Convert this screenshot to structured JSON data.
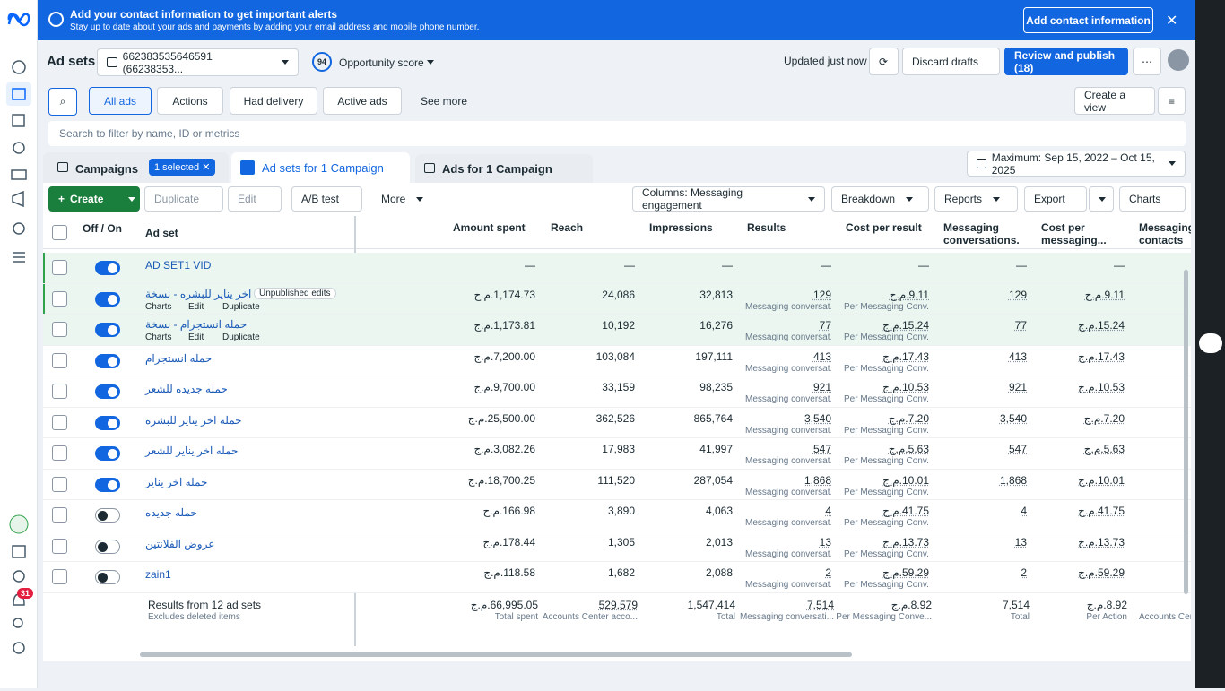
{
  "banner": {
    "title": "Add your contact information to get important alerts",
    "subtitle": "Stay up to date about your ads and payments by adding your email address and mobile phone number.",
    "button": "Add contact information"
  },
  "sidebar": {
    "badge": "31"
  },
  "header": {
    "title": "Ad sets",
    "account": "662383535646591 (66238353...",
    "score": "94",
    "score_label": "Opportunity score",
    "updated": "Updated just now",
    "discard": "Discard drafts",
    "publish": "Review and publish (18)"
  },
  "filters": {
    "items": [
      "All ads",
      "Actions",
      "Had delivery",
      "Active ads",
      "See more"
    ],
    "create_view": "Create a view",
    "search_placeholder": "Search to filter by name, ID or metrics"
  },
  "tabs": {
    "campaigns": "Campaigns",
    "selected": "1 selected",
    "adsets": "Ad sets for 1 Campaign",
    "ads": "Ads for 1 Campaign",
    "date": "Maximum: Sep 15, 2022 – Oct 15, 2025"
  },
  "toolbar": {
    "create": "Create",
    "duplicate": "Duplicate",
    "edit": "Edit",
    "ab": "A/B test",
    "more": "More",
    "columns": "Columns: Messaging engagement",
    "breakdown": "Breakdown",
    "reports": "Reports",
    "export": "Export",
    "charts": "Charts"
  },
  "table": {
    "columns": [
      "Off / On",
      "Ad set",
      "Amount spent",
      "Reach",
      "Impressions",
      "Results",
      "Cost per result",
      "Messaging conversations...",
      "Cost per messaging...",
      "Messaging contacts"
    ],
    "rows": [
      {
        "name": "AD SET1 VID",
        "on": true,
        "amount": "—",
        "reach": "—",
        "impressions": "—",
        "results": "—",
        "cost": "—",
        "conversations": "—",
        "cost_msg": "—"
      },
      {
        "name": "حمله اخر يناير للبشره - نسخة",
        "badge": "Unpublished edits",
        "actions": [
          "Charts",
          "Edit",
          "Duplicate"
        ],
        "on": true,
        "amount": "ج.م.1,174.73",
        "reach": "24,086",
        "impressions": "32,813",
        "results": "129",
        "results_sub": "Messaging conversat...",
        "cost": "ج.م.9.11",
        "cost_sub": "Per Messaging Conv...",
        "conversations": "129",
        "cost_msg": "ج.م.9.11"
      },
      {
        "name": "حمله انستجرام - نسخة",
        "actions": [
          "Charts",
          "Edit",
          "Duplicate"
        ],
        "on": true,
        "amount": "ج.م.1,173.81",
        "reach": "10,192",
        "impressions": "16,276",
        "results": "77",
        "results_sub": "Messaging conversat...",
        "cost": "ج.م.15.24",
        "cost_sub": "Per Messaging Conv...",
        "conversations": "77",
        "cost_msg": "ج.م.15.24"
      },
      {
        "name": "حمله انستجرام",
        "on": true,
        "amount": "ج.م.7,200.00",
        "reach": "103,084",
        "impressions": "197,111",
        "results": "413",
        "results_sub": "Messaging conversat...",
        "cost": "ج.م.17.43",
        "cost_sub": "Per Messaging Conv...",
        "conversations": "413",
        "cost_msg": "ج.م.17.43"
      },
      {
        "name": "حمله جديده للشعر",
        "on": true,
        "amount": "ج.م.9,700.00",
        "reach": "33,159",
        "impressions": "98,235",
        "results": "921",
        "results_sub": "Messaging conversat...",
        "cost": "ج.م.10.53",
        "cost_sub": "Per Messaging Conv...",
        "conversations": "921",
        "cost_msg": "ج.م.10.53"
      },
      {
        "name": "حمله اخر يناير للبشره",
        "on": true,
        "amount": "ج.م.25,500.00",
        "reach": "362,526",
        "impressions": "865,764",
        "results": "3,540",
        "results_sub": "Messaging conversat...",
        "cost": "ج.م.7.20",
        "cost_sub": "Per Messaging Conv...",
        "conversations": "3,540",
        "cost_msg": "ج.م.7.20"
      },
      {
        "name": "حمله اخر يناير للشعر",
        "on": true,
        "amount": "ج.م.3,082.26",
        "reach": "17,983",
        "impressions": "41,997",
        "results": "547",
        "results_sub": "Messaging conversat...",
        "cost": "ج.م.5.63",
        "cost_sub": "Per Messaging Conv...",
        "conversations": "547",
        "cost_msg": "ج.م.5.63"
      },
      {
        "name": "خمله اخر يناير",
        "on": true,
        "amount": "ج.م.18,700.25",
        "reach": "111,520",
        "impressions": "287,054",
        "results": "1,868",
        "results_sub": "Messaging conversat...",
        "cost": "ج.م.10.01",
        "cost_sub": "Per Messaging Conv...",
        "conversations": "1,868",
        "cost_msg": "ج.م.10.01"
      },
      {
        "name": "حمله جديده",
        "on": false,
        "amount": "ج.م.166.98",
        "reach": "3,890",
        "impressions": "4,063",
        "results": "4",
        "results_sub": "Messaging conversat...",
        "cost": "ج.م.41.75",
        "cost_sub": "Per Messaging Conv...",
        "conversations": "4",
        "cost_msg": "ج.م.41.75"
      },
      {
        "name": "عروض الفلانتين",
        "on": false,
        "amount": "ج.م.178.44",
        "reach": "1,305",
        "impressions": "2,013",
        "results": "13",
        "results_sub": "Messaging conversat...",
        "cost": "ج.م.13.73",
        "cost_sub": "Per Messaging Conv...",
        "conversations": "13",
        "cost_msg": "ج.م.13.73"
      },
      {
        "name": "zain1",
        "on": false,
        "amount": "ج.م.118.58",
        "reach": "1,682",
        "impressions": "2,088",
        "results": "2",
        "results_sub": "Messaging conversat...",
        "cost": "ج.م.59.29",
        "cost_sub": "Per Messaging Conv...",
        "conversations": "2",
        "cost_msg": "ج.م.59.29"
      }
    ],
    "footer": {
      "title": "Results from 12 ad sets",
      "note": "Excludes deleted items",
      "amount": {
        "value": "ج.م.66,995.05",
        "label": "Total spent"
      },
      "reach": {
        "value": "529,579",
        "label": "Accounts Center acco..."
      },
      "impressions": {
        "value": "1,547,414",
        "label": "Total"
      },
      "results": {
        "value": "7,514",
        "label": "Messaging conversati..."
      },
      "cost": {
        "value": "ج.م.8.92",
        "label": "Per Messaging Conve..."
      },
      "conversations": {
        "value": "7,514",
        "label": "Total"
      },
      "cost_msg": {
        "value": "ج.م.8.92",
        "label": "Per Action"
      },
      "contacts_label": "Accounts Cen"
    }
  }
}
